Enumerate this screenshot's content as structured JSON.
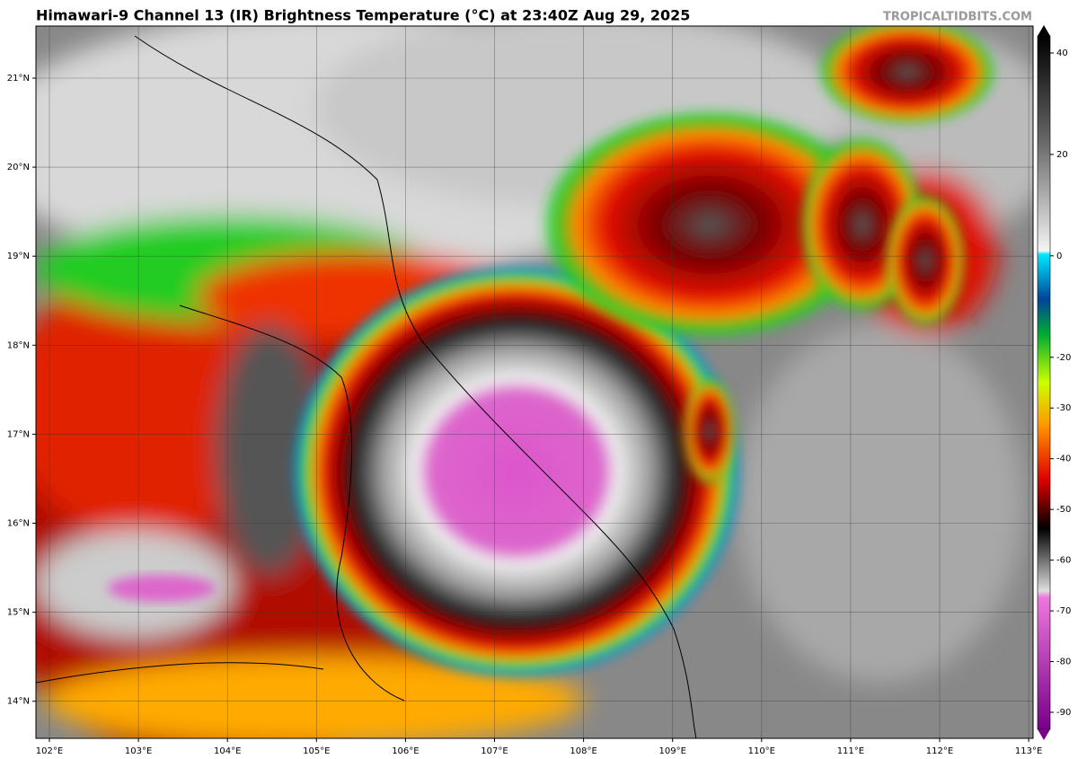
{
  "header": {
    "title": "Himawari-9 Channel 13 (IR) Brightness Temperature (°C) at 23:40Z Aug 29, 2025",
    "watermark": "TROPICALTIDBITS.COM"
  },
  "map": {
    "lat_labels": [
      "21°N",
      "20°N",
      "19°N",
      "18°N",
      "17°N",
      "16°N",
      "15°N",
      "14°N"
    ],
    "lon_labels": [
      "102°E",
      "103°E",
      "104°E",
      "105°E",
      "106°E",
      "107°E",
      "108°E",
      "109°E",
      "110°E",
      "111°E",
      "112°E",
      "113°E"
    ]
  },
  "colorbar": {
    "ticks": [
      40,
      20,
      0,
      -20,
      -30,
      -40,
      -50,
      -60,
      -70,
      -80,
      -90
    ]
  }
}
